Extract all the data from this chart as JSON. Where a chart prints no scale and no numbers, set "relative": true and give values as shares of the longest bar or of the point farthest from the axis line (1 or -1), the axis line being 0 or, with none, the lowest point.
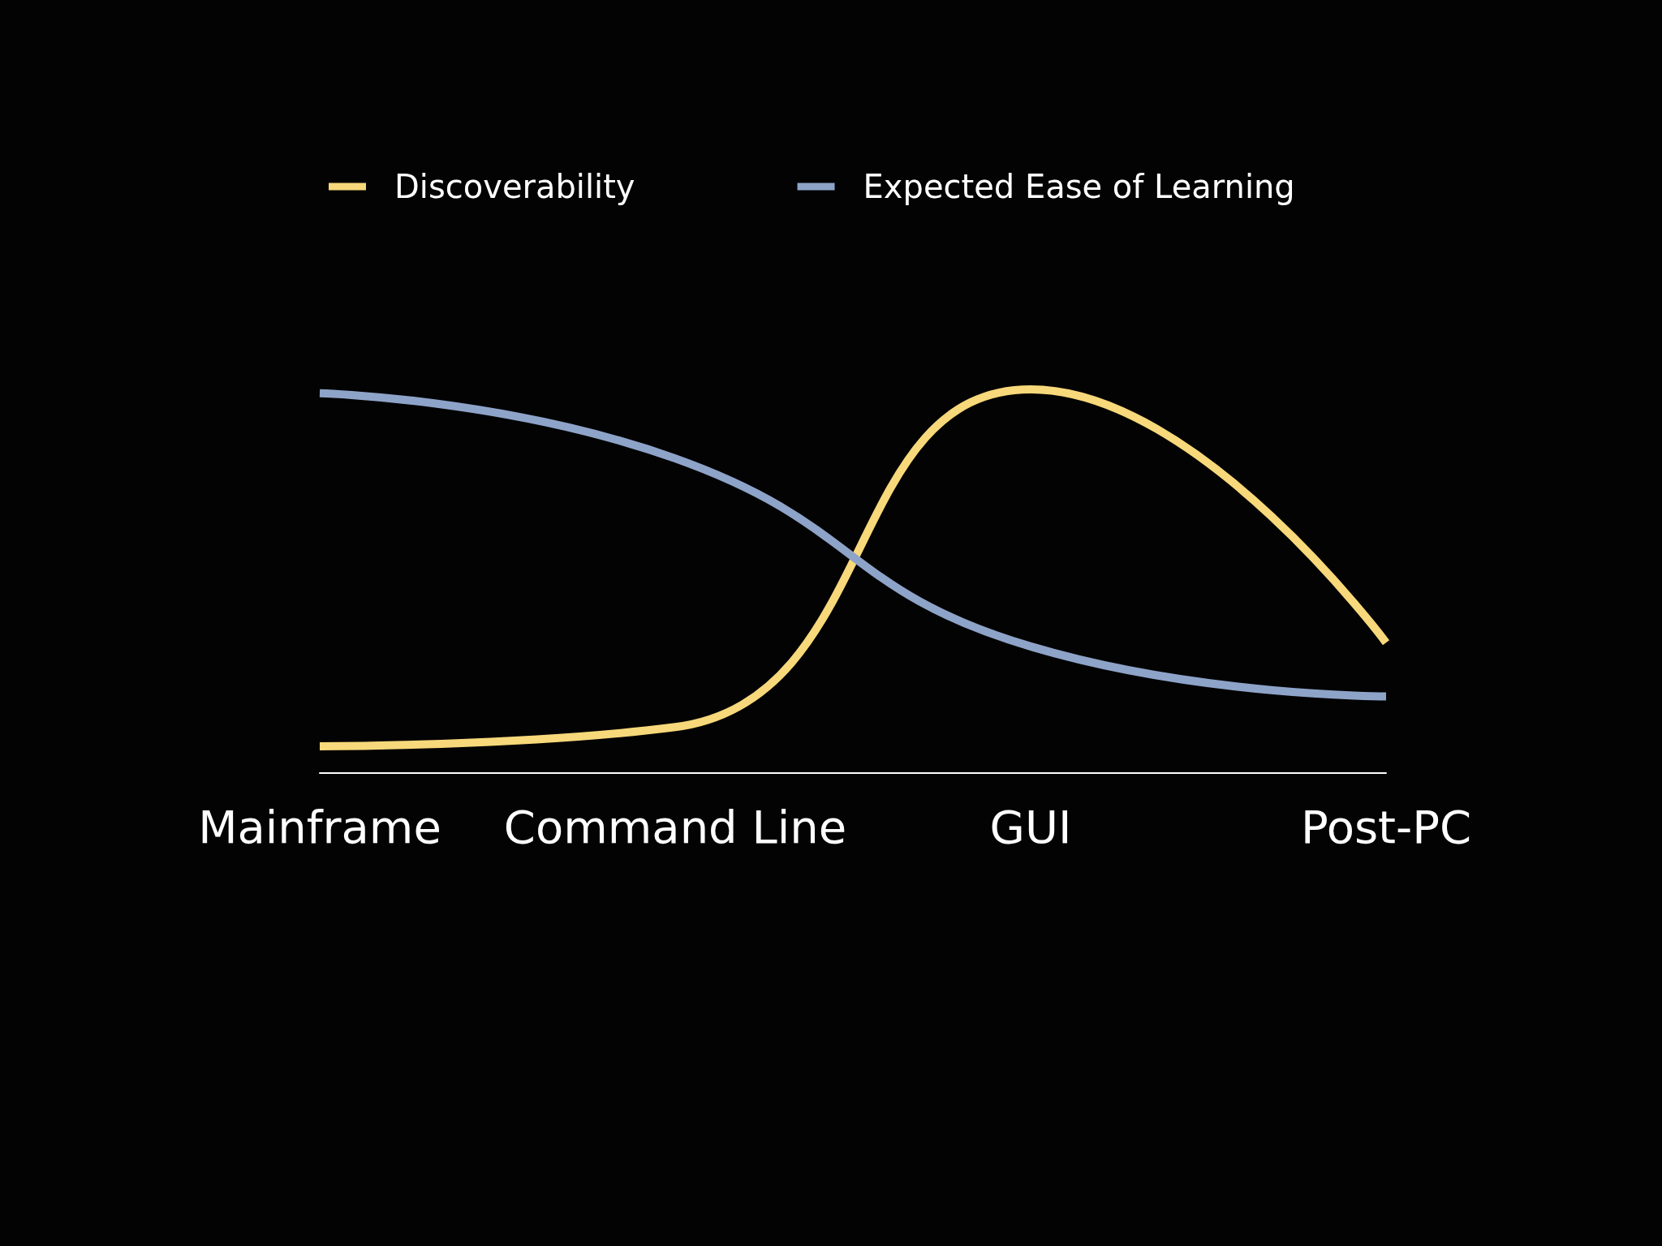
{
  "chart_data": {
    "type": "line",
    "relative": true,
    "categories": [
      "Mainframe",
      "Command Line",
      "GUI",
      "Post-PC"
    ],
    "series": [
      {
        "name": "Discoverability",
        "color": "#f7d87a",
        "values": [
          0.07,
          0.12,
          1.0,
          0.34
        ]
      },
      {
        "name": "Expected Ease of Learning",
        "color": "#8ea3c8",
        "values": [
          0.99,
          0.82,
          0.33,
          0.2
        ]
      }
    ],
    "legend": "top",
    "grid": false,
    "marker": "none",
    "line_style": "solid"
  }
}
